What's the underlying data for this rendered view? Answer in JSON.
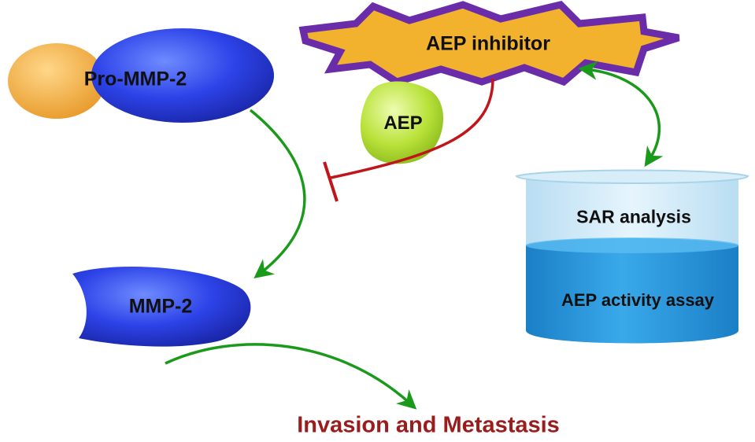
{
  "nodes": {
    "pro_mmp2": "Pro-MMP-2",
    "aep_inhibitor": "AEP inhibitor",
    "aep": "AEP",
    "mmp2": "MMP-2",
    "sar_analysis": "SAR analysis",
    "aep_activity_assay": "AEP  activity assay",
    "outcome": "Invasion and Metastasis"
  },
  "colors": {
    "activation_arrow": "#1a9a1a",
    "inhibition_line": "#c0151b",
    "outcome_text": "#9b1c1c",
    "protein_blue": "#2d43e8",
    "protein_orange": "#f1a93a",
    "aep_green": "#b9e23a",
    "burst_fill": "#f2b22d",
    "burst_stroke": "#6a2ca8",
    "beaker_upper": "#cfe9f7",
    "beaker_liquid": "#2d9ee0"
  }
}
